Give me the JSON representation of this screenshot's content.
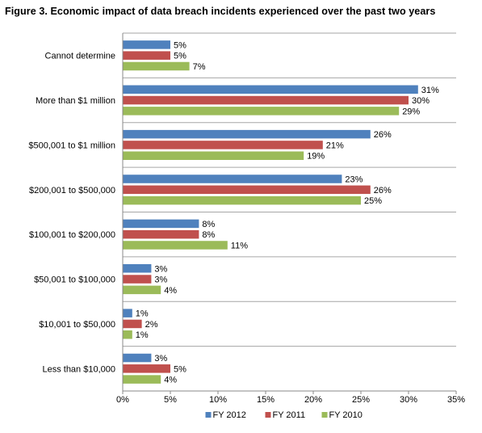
{
  "chart_data": {
    "type": "bar",
    "orientation": "horizontal",
    "title": "Figure 3. Economic impact of data breach incidents experienced over the past two years",
    "categories": [
      "Cannot determine",
      "More than $1 million",
      "$500,001 to $1 million",
      "$200,001 to $500,000",
      "$100,001 to $200,000",
      "$50,001 to $100,000",
      "$10,001 to $50,000",
      "Less than $10,000"
    ],
    "series": [
      {
        "name": "FY 2012",
        "color": "#4f81bd",
        "values": [
          5,
          31,
          26,
          23,
          8,
          3,
          1,
          3
        ],
        "labels": [
          "5%",
          "31%",
          "26%",
          "23%",
          "8%",
          "3%",
          "1%",
          "3%"
        ]
      },
      {
        "name": "FY 2011",
        "color": "#c0504d",
        "values": [
          5,
          30,
          21,
          26,
          8,
          3,
          2,
          5
        ],
        "labels": [
          "5%",
          "30%",
          "21%",
          "26%",
          "8%",
          "3%",
          "2%",
          "5%"
        ]
      },
      {
        "name": "FY 2010",
        "color": "#9bbb59",
        "values": [
          7,
          29,
          19,
          25,
          11,
          4,
          1,
          4
        ],
        "labels": [
          "7%",
          "29%",
          "19%",
          "25%",
          "11%",
          "4%",
          "1%",
          "4%"
        ]
      }
    ],
    "xlim": [
      0,
      35
    ],
    "xticks": [
      0,
      5,
      10,
      15,
      20,
      25,
      30,
      35
    ],
    "xtick_labels": [
      "0%",
      "5%",
      "10%",
      "15%",
      "20%",
      "25%",
      "30%",
      "35%"
    ],
    "grid": "horizontal separators between categories",
    "legend_position": "bottom"
  }
}
